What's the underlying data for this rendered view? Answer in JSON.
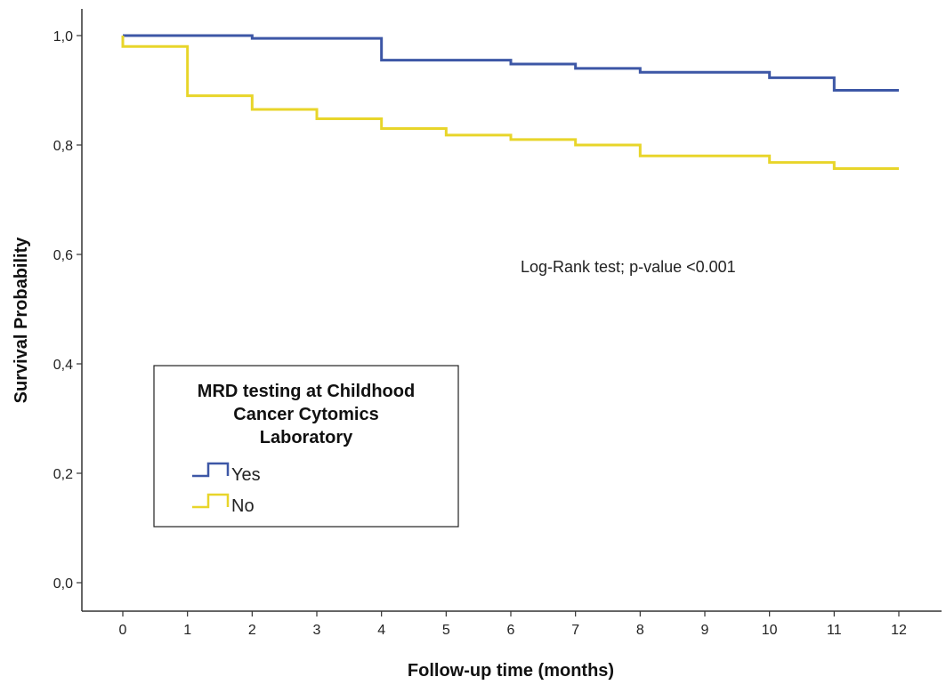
{
  "chart_data": {
    "type": "line",
    "subtype": "kaplan-meier-step",
    "title": "",
    "xlabel": "Follow-up time (months)",
    "ylabel": "Survival Probability",
    "xlim": [
      0,
      12
    ],
    "ylim": [
      0,
      1
    ],
    "xticks": [
      0,
      1,
      2,
      3,
      4,
      5,
      6,
      7,
      8,
      9,
      10,
      11,
      12
    ],
    "xtick_labels": [
      "0",
      "1",
      "2",
      "3",
      "4",
      "5",
      "6",
      "7",
      "8",
      "9",
      "10",
      "11",
      "12"
    ],
    "yticks": [
      0,
      0.2,
      0.4,
      0.6,
      0.8,
      1.0
    ],
    "ytick_labels": [
      "0,0",
      "0,2",
      "0,4",
      "0,6",
      "0,8",
      "1,0"
    ],
    "grid": false,
    "legend": {
      "title_lines": [
        "MRD testing at Childhood",
        "Cancer Cytomics",
        "Laboratory"
      ],
      "placement": "left-center"
    },
    "annotation": "Log-Rank test; p-value <0.001",
    "series": [
      {
        "name": "Yes",
        "color": "#3d57a6",
        "steps": [
          [
            0,
            1.0
          ],
          [
            2,
            0.995
          ],
          [
            4,
            0.955
          ],
          [
            6,
            0.948
          ],
          [
            7,
            0.94
          ],
          [
            8,
            0.933
          ],
          [
            10,
            0.923
          ],
          [
            11,
            0.9
          ],
          [
            12,
            0.9
          ]
        ]
      },
      {
        "name": "No",
        "color": "#e8d52a",
        "steps": [
          [
            0,
            0.98
          ],
          [
            1,
            0.89
          ],
          [
            2,
            0.865
          ],
          [
            3,
            0.848
          ],
          [
            4,
            0.83
          ],
          [
            5,
            0.818
          ],
          [
            6,
            0.81
          ],
          [
            7,
            0.8
          ],
          [
            8,
            0.78
          ],
          [
            10,
            0.768
          ],
          [
            11,
            0.757
          ],
          [
            12,
            0.757
          ]
        ]
      }
    ]
  }
}
